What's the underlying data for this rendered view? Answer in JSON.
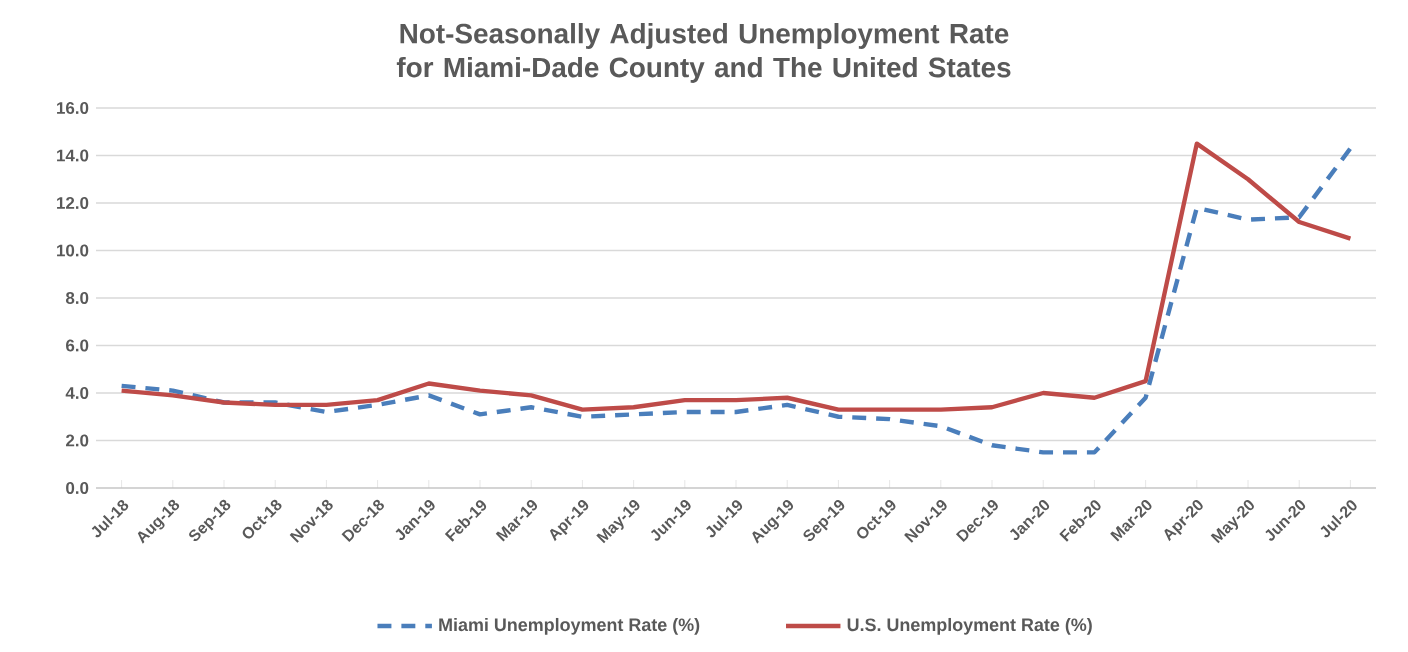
{
  "chart_data": {
    "type": "line",
    "title": "Not-Seasonally Adjusted Unemployment Rate for Miami-Dade County and The United States",
    "categories": [
      "Jul-18",
      "Aug-18",
      "Sep-18",
      "Oct-18",
      "Nov-18",
      "Dec-18",
      "Jan-19",
      "Feb-19",
      "Mar-19",
      "Apr-19",
      "May-19",
      "Jun-19",
      "Jul-19",
      "Aug-19",
      "Sep-19",
      "Oct-19",
      "Nov-19",
      "Dec-19",
      "Jan-20",
      "Feb-20",
      "Mar-20",
      "Apr-20",
      "May-20",
      "Jun-20",
      "Jul-20"
    ],
    "series": [
      {
        "name": "Miami Unemployment Rate (%)",
        "color": "#4a7ebb",
        "line_style": "dashed",
        "values": [
          4.3,
          4.1,
          3.6,
          3.6,
          3.2,
          3.5,
          3.9,
          3.1,
          3.4,
          3.0,
          3.1,
          3.2,
          3.2,
          3.5,
          3.0,
          2.9,
          2.6,
          1.8,
          1.5,
          1.5,
          3.8,
          11.8,
          11.3,
          11.4,
          14.3
        ]
      },
      {
        "name": "U.S. Unemployment Rate (%)",
        "color": "#be4b48",
        "line_style": "solid",
        "values": [
          4.1,
          3.9,
          3.6,
          3.5,
          3.5,
          3.7,
          4.4,
          4.1,
          3.9,
          3.3,
          3.4,
          3.7,
          3.7,
          3.8,
          3.3,
          3.3,
          3.3,
          3.4,
          4.0,
          3.8,
          4.5,
          14.5,
          13.0,
          11.2,
          10.5
        ]
      }
    ],
    "ylim": [
      0,
      16
    ],
    "yticks": [
      {
        "value": 0,
        "label": "0.0"
      },
      {
        "value": 2,
        "label": "2.0"
      },
      {
        "value": 4,
        "label": "4.0"
      },
      {
        "value": 6,
        "label": "6.0"
      },
      {
        "value": 8,
        "label": "8.0"
      },
      {
        "value": 10,
        "label": "10.0"
      },
      {
        "value": 12,
        "label": "12.0"
      },
      {
        "value": 14,
        "label": "14.0"
      },
      {
        "value": 16,
        "label": "16.0"
      }
    ],
    "grid": "y",
    "legend": "bottom"
  }
}
